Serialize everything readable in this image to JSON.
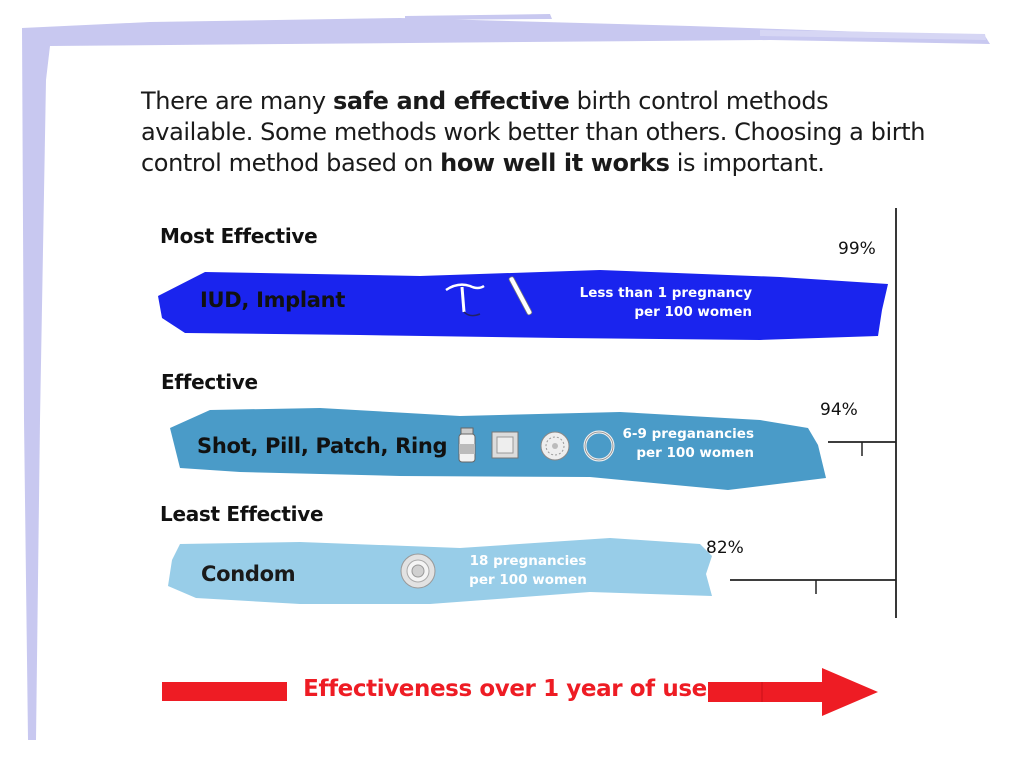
{
  "intro": {
    "part1": "There are many ",
    "bold1": "safe and effective",
    "part2": " birth control methods available. Some methods work better than others. Choosing a birth control method based on ",
    "bold2": "how well it works",
    "part3": " is important."
  },
  "chart_data": {
    "type": "bar",
    "title": "",
    "xlabel": "Effectiveness over 1 year of use",
    "ylabel": "",
    "categories": [
      "Most Effective",
      "Effective",
      "Least Effective"
    ],
    "methods": [
      "IUD, Implant",
      "Shot, Pill, Patch, Ring",
      "Condom"
    ],
    "values": [
      99,
      94,
      82
    ],
    "value_labels": [
      "99%",
      "94%",
      "82%"
    ],
    "pregnancy_rates": [
      [
        "Less than 1 pregnancy",
        "per 100 women"
      ],
      [
        "6-9 preganancies",
        "per 100 women"
      ],
      [
        "18 pregnancies",
        "per 100 women"
      ]
    ],
    "icons": [
      [
        "iud-icon",
        "implant-icon"
      ],
      [
        "vial-icon",
        "patch-icon",
        "pill-pack-icon",
        "ring-icon"
      ],
      [
        "condom-icon"
      ]
    ],
    "colors": [
      "#1a24ee",
      "#4a9bc8",
      "#98cde8"
    ],
    "method_text_colors": [
      "#111111",
      "#111111",
      "#1a1a1a"
    ],
    "xlim": [
      0,
      100
    ],
    "grid": false,
    "arrow_color": "#ee1c24",
    "frame_color": "#c8c8f0"
  }
}
